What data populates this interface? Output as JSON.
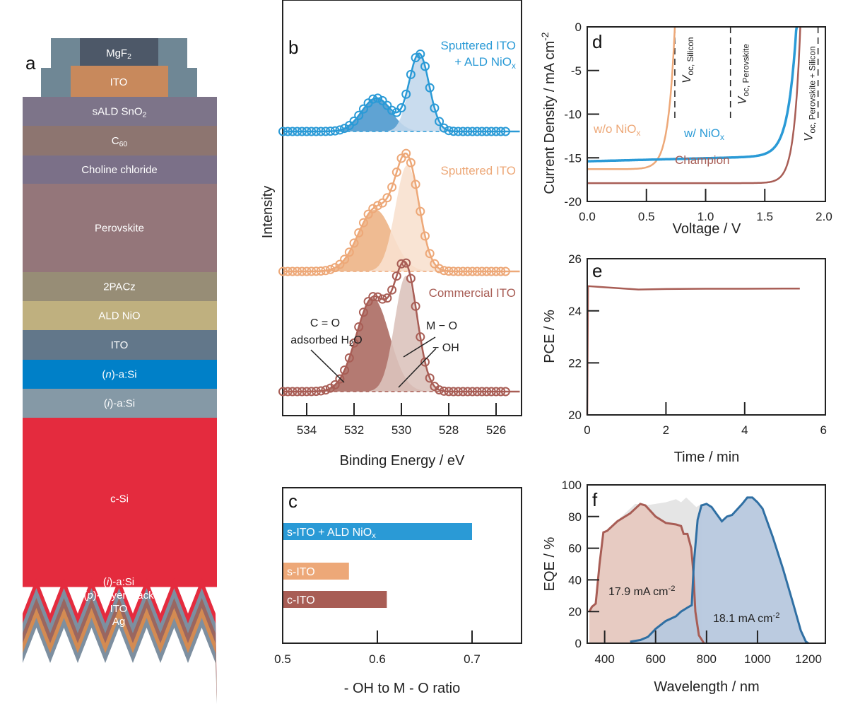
{
  "panel_labels": {
    "a": "a",
    "b": "b",
    "c": "c",
    "d": "d",
    "e": "e",
    "f": "f"
  },
  "colors": {
    "blue": "#2a9ad6",
    "orange": "#eda878",
    "brown": "#a85d55",
    "eqe_blue": "#2f6fa3",
    "eqe_blue_fill": "#b7c8de",
    "eqe_brown_fill": "#e7cbc2",
    "grey": "#dcdcdc"
  },
  "stack": {
    "top": [
      {
        "text": "MgF",
        "sub": "2",
        "color": "#4d5868"
      },
      {
        "text": "ITO",
        "sub": "",
        "color": "#c8895c"
      }
    ],
    "side_color": "#6f8795",
    "layers": [
      {
        "text": "sALD SnO",
        "sub": "2",
        "color": "#7d7489"
      },
      {
        "text": "C",
        "sub": "60",
        "color": "#8d7570"
      },
      {
        "text": "Choline chloride",
        "sub": "",
        "color": "#7b7088"
      },
      {
        "text": "Perovskite",
        "sub": "",
        "color": "#94767a"
      },
      {
        "text": "2PACz",
        "sub": "",
        "color": "#978d76"
      },
      {
        "text": "ALD NiO",
        "sub": "",
        "color": "#bfb07f"
      },
      {
        "text": "ITO",
        "sub": "",
        "color": "#62778a"
      },
      {
        "pre": "(",
        "it": "n",
        "text": ")-a:Si",
        "sub": "",
        "color": "#0080c8"
      },
      {
        "pre": "(",
        "it": "i",
        "text": ")-a:Si",
        "sub": "",
        "color": "#8599a6"
      },
      {
        "text": "c-Si",
        "sub": "",
        "color": "#e42b3e"
      }
    ],
    "rear_labels": [
      {
        "pre": "(",
        "it": "i",
        "text": ")-a:Si"
      },
      {
        "pre": "(",
        "it": "p",
        "text": ")- layer stack"
      },
      {
        "pre": "",
        "it": "",
        "text": "ITO"
      },
      {
        "pre": "",
        "it": "",
        "text": "Ag"
      }
    ]
  },
  "chart_data": [
    {
      "id": "b",
      "type": "line",
      "xlabel": "Binding Energy / eV",
      "ylabel": "Intensity",
      "xlim": [
        535,
        525
      ],
      "xticks": [
        534,
        532,
        530,
        528,
        526
      ],
      "series": [
        {
          "name": "Sputtered ITO",
          "name2": "+ ALD NiO",
          "name2_sub": "x",
          "color": "#2a9ad6",
          "fill_dark": "#5fa3d3",
          "fill_light": "#c3d8ec",
          "scale": 118,
          "components": [
            {
              "center": 531.05,
              "amp": 0.4,
              "sigma": 0.62
            },
            {
              "center": 529.25,
              "amp": 0.93,
              "sigma": 0.42
            }
          ]
        },
        {
          "name": "Sputtered ITO",
          "color": "#eda878",
          "fill_dark": "#efbb92",
          "fill_light": "#f8e1cf",
          "scale": 175,
          "components": [
            {
              "center": 531.1,
              "amp": 0.5,
              "sigma": 0.72
            },
            {
              "center": 529.75,
              "amp": 0.86,
              "sigma": 0.5
            }
          ]
        },
        {
          "name": "Commercial ITO",
          "color": "#a85d55",
          "fill_dark": "#b47a72",
          "fill_light": "#dcc3bd",
          "scale": 200,
          "components": [
            {
              "center": 531.2,
              "amp": 0.66,
              "sigma": 0.7
            },
            {
              "center": 529.8,
              "amp": 0.82,
              "sigma": 0.48
            }
          ]
        }
      ],
      "annotations": {
        "co": "C = O",
        "h2o": "adsorbed H",
        "h2o_sub": "2",
        "h2o_end": "O",
        "mo": "M − O",
        "oh": "− OH"
      }
    },
    {
      "id": "c",
      "type": "bar",
      "orientation": "horizontal",
      "xlabel": "- OH to M - O ratio",
      "xlim": [
        0.5,
        0.75
      ],
      "xticks": [
        "0.5",
        "0.6",
        "0.7"
      ],
      "categories": [
        {
          "text": "s-ITO + ALD NiO",
          "sub": "x"
        },
        {
          "text": "s-ITO",
          "sub": ""
        },
        {
          "text": "c-ITO",
          "sub": ""
        }
      ],
      "values": [
        0.7,
        0.57,
        0.61
      ],
      "colors": [
        "#2a9ad6",
        "#eda878",
        "#a85d55"
      ]
    },
    {
      "id": "d",
      "type": "line",
      "xlabel": "Voltage / V",
      "ylabel": "Current Density / mA cm",
      "ylabel_sup": "-2",
      "xlim": [
        0,
        2
      ],
      "ylim": [
        -20,
        0
      ],
      "xticks": [
        "0.0",
        "0.5",
        "1.0",
        "1.5",
        "2.0"
      ],
      "yticks": [
        "0",
        "-5",
        "-10",
        "-15",
        "-20"
      ],
      "series": [
        {
          "name": "w/o NiO",
          "sub": "x",
          "color": "#eda878",
          "jsc": 16.3,
          "voc": 0.74
        },
        {
          "name": "w/ NiO",
          "sub": "x",
          "color": "#2a9ad6",
          "jsc": 15.4,
          "voc": 1.77
        },
        {
          "name": "Champion",
          "sub": "",
          "color": "#a85d55",
          "jsc": 17.9,
          "voc": 1.8
        }
      ],
      "voc_markers": [
        {
          "v": 0.74,
          "label": "V",
          "sub": "oc, Silicon"
        },
        {
          "v": 1.21,
          "label": "V",
          "sub": "oc, Perovskite"
        },
        {
          "v": 1.95,
          "label": "V",
          "sub": "oc, Perovskite + Silicon"
        }
      ]
    },
    {
      "id": "e",
      "type": "line",
      "xlabel": "Time / min",
      "ylabel": "PCE / %",
      "xlim": [
        0,
        6
      ],
      "ylim": [
        20,
        26
      ],
      "xticks": [
        "0",
        "2",
        "4",
        "6"
      ],
      "yticks": [
        "20",
        "22",
        "24",
        "26"
      ],
      "series": [
        {
          "color": "#a85d55",
          "x": [
            0,
            0.02,
            0.3,
            0.8,
            1.3,
            2,
            3,
            4,
            5,
            5.4
          ],
          "y": [
            20,
            24.95,
            24.92,
            24.87,
            24.82,
            24.84,
            24.85,
            24.85,
            24.86,
            24.86
          ]
        }
      ]
    },
    {
      "id": "f",
      "type": "area",
      "xlabel": "Wavelength / nm",
      "ylabel": "EQE / %",
      "xlim": [
        340,
        1200
      ],
      "ylim": [
        0,
        100
      ],
      "xticks": [
        "400",
        "600",
        "800",
        "1000",
        "1200"
      ],
      "yticks": [
        "0",
        "20",
        "40",
        "60",
        "80",
        "100"
      ],
      "series": [
        {
          "role": "total",
          "color": "#dcdcdc",
          "x": [
            340,
            360,
            380,
            400,
            520,
            560,
            600,
            640,
            680,
            700,
            720,
            740,
            760,
            780
          ],
          "y": [
            20,
            25,
            50,
            70,
            88,
            87,
            88,
            89,
            91,
            89,
            92,
            89,
            86,
            88
          ]
        },
        {
          "role": "perovskite",
          "color": "#a85d55",
          "fill": "#e7cbc2",
          "x": [
            340,
            350,
            365,
            380,
            395,
            410,
            450,
            500,
            540,
            560,
            600,
            640,
            680,
            700,
            710,
            725,
            740,
            748,
            756,
            770,
            790
          ],
          "y": [
            20,
            23,
            25,
            50,
            70,
            71,
            77,
            82,
            88,
            87,
            80,
            76,
            75,
            74,
            69,
            69,
            60,
            45,
            20,
            5,
            0
          ]
        },
        {
          "role": "silicon",
          "color": "#2f6fa3",
          "fill": "#b7c8de",
          "x": [
            500,
            540,
            570,
            600,
            640,
            680,
            700,
            730,
            742,
            750,
            765,
            780,
            800,
            820,
            860,
            880,
            900,
            940,
            960,
            980,
            1000,
            1020,
            1060,
            1100,
            1140,
            1170,
            1190,
            1200
          ],
          "y": [
            1,
            2,
            4,
            9,
            14,
            17,
            20,
            23,
            24,
            50,
            78,
            87,
            88,
            86,
            77,
            80,
            81,
            88,
            92,
            92,
            89,
            85,
            67,
            47,
            25,
            8,
            1,
            0
          ]
        }
      ],
      "labels": [
        {
          "text": "17.9 mA cm",
          "sup": "-2"
        },
        {
          "text": "18.1 mA cm",
          "sup": "-2"
        }
      ]
    }
  ]
}
